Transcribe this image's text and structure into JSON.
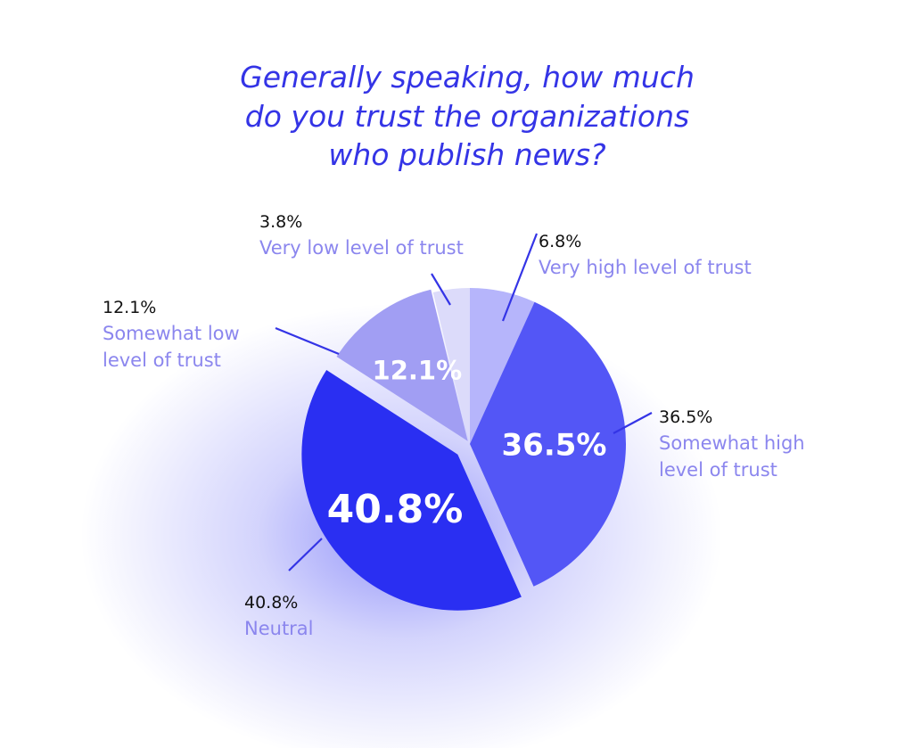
{
  "chart_data": {
    "type": "pie",
    "title_lines": [
      "Generally speaking, how much",
      "do you trust the organizations",
      "who publish news?"
    ],
    "slices": [
      {
        "key": "very-high",
        "value": 6.8,
        "inner_label": "",
        "callout_pct": "6.8%",
        "callout_text": [
          "Very high level of trust"
        ],
        "color": "#b6b5fb"
      },
      {
        "key": "somewhat-high",
        "value": 36.5,
        "inner_label": "36.5%",
        "callout_pct": "36.5%",
        "callout_text": [
          "Somewhat high",
          "level of trust"
        ],
        "color": "#5356f6"
      },
      {
        "key": "neutral",
        "value": 40.8,
        "inner_label": "40.8%",
        "callout_pct": "40.8%",
        "callout_text": [
          "Neutral"
        ],
        "color": "#2a2ff2"
      },
      {
        "key": "somewhat-low",
        "value": 12.1,
        "inner_label": "12.1%",
        "callout_pct": "12.1%",
        "callout_text": [
          "Somewhat low",
          "level of trust"
        ],
        "color": "#a19ef3"
      },
      {
        "key": "very-low",
        "value": 3.8,
        "inner_label": "",
        "callout_pct": "3.8%",
        "callout_text": [
          "Very low level of trust"
        ],
        "color": "#dcdbfa"
      }
    ],
    "start_angle_deg": 0,
    "direction": "clockwise",
    "colors": {
      "title": "#3434e6",
      "callout_pct": "#111111",
      "callout_text": "#8b86ee",
      "leader_line": "#3434e6",
      "glow": "#3a3cf4"
    }
  }
}
